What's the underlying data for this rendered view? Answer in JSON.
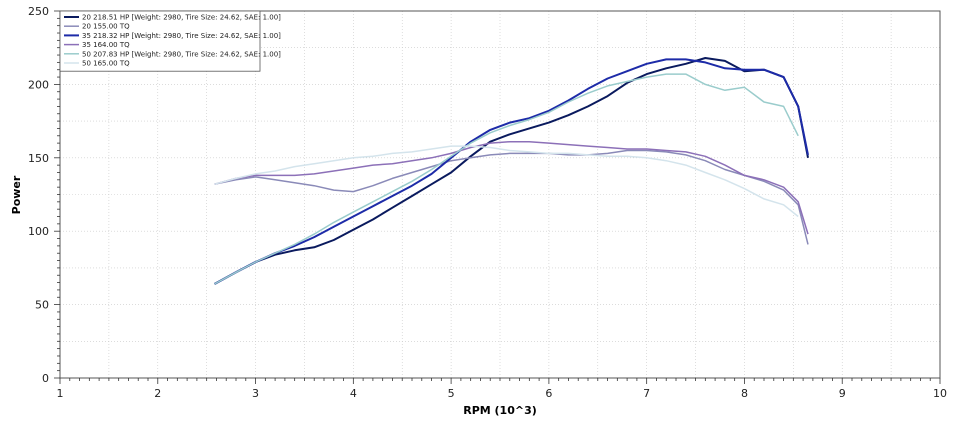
{
  "chart_data": {
    "type": "line",
    "xlabel": "RPM (10^3)",
    "ylabel": "Power",
    "xlim": [
      1,
      10
    ],
    "ylim": [
      0,
      250
    ],
    "x_ticks": [
      1,
      2,
      3,
      4,
      5,
      6,
      7,
      8,
      9,
      10
    ],
    "y_ticks": [
      0,
      50,
      100,
      150,
      200,
      250
    ],
    "grid": true,
    "legend_position": "top-left",
    "series": [
      {
        "name": "20 218.51 HP [Weight: 2980, Tire Size: 24.62, SAE: 1.00]",
        "color": "#0a1a5e",
        "width": 2,
        "x": [
          2.58,
          2.8,
          3.0,
          3.2,
          3.4,
          3.6,
          3.8,
          4.0,
          4.2,
          4.4,
          4.6,
          4.8,
          5.0,
          5.2,
          5.4,
          5.6,
          5.8,
          6.0,
          6.2,
          6.4,
          6.6,
          6.8,
          7.0,
          7.2,
          7.4,
          7.6,
          7.8,
          8.0,
          8.2,
          8.4,
          8.55,
          8.65
        ],
        "y": [
          64,
          72,
          79,
          84,
          87,
          89,
          94,
          101,
          108,
          116,
          124,
          132,
          140,
          151,
          161,
          166,
          170,
          174,
          179,
          185,
          192,
          201,
          207,
          211,
          214,
          218,
          216,
          209,
          210,
          205,
          185,
          150
        ]
      },
      {
        "name": "20 155.00 TQ",
        "color": "#8a8ab8",
        "width": 1.5,
        "x": [
          2.58,
          2.8,
          3.0,
          3.2,
          3.4,
          3.6,
          3.8,
          4.0,
          4.2,
          4.4,
          4.6,
          4.8,
          5.0,
          5.2,
          5.4,
          5.6,
          5.8,
          6.0,
          6.2,
          6.4,
          6.6,
          6.8,
          7.0,
          7.2,
          7.4,
          7.6,
          7.8,
          8.0,
          8.2,
          8.4,
          8.55,
          8.65
        ],
        "y": [
          132,
          135,
          137,
          135,
          133,
          131,
          128,
          127,
          131,
          136,
          140,
          144,
          148,
          150,
          152,
          153,
          153,
          153,
          152,
          152,
          153,
          155,
          155,
          154,
          152,
          148,
          142,
          138,
          134,
          128,
          118,
          91
        ]
      },
      {
        "name": "35 218.32 HP [Weight: 2980, Tire Size: 24.62, SAE: 1.00]",
        "color": "#1d2ba8",
        "width": 2,
        "x": [
          2.58,
          2.8,
          3.0,
          3.2,
          3.4,
          3.6,
          3.8,
          4.0,
          4.2,
          4.4,
          4.6,
          4.8,
          5.0,
          5.2,
          5.4,
          5.6,
          5.8,
          6.0,
          6.2,
          6.4,
          6.6,
          6.8,
          7.0,
          7.2,
          7.4,
          7.6,
          7.8,
          8.0,
          8.2,
          8.4,
          8.55,
          8.65
        ],
        "y": [
          64,
          72,
          79,
          85,
          90,
          96,
          103,
          110,
          117,
          124,
          131,
          139,
          150,
          161,
          169,
          174,
          177,
          182,
          189,
          197,
          204,
          209,
          214,
          217,
          217,
          215,
          211,
          210,
          210,
          205,
          185,
          152
        ]
      },
      {
        "name": "35 164.00 TQ",
        "color": "#8c70b8",
        "width": 1.5,
        "x": [
          2.58,
          2.8,
          3.0,
          3.2,
          3.4,
          3.6,
          3.8,
          4.0,
          4.2,
          4.4,
          4.6,
          4.8,
          5.0,
          5.2,
          5.4,
          5.6,
          5.8,
          6.0,
          6.2,
          6.4,
          6.6,
          6.8,
          7.0,
          7.2,
          7.4,
          7.6,
          7.8,
          8.0,
          8.2,
          8.4,
          8.55,
          8.65
        ],
        "y": [
          132,
          136,
          138,
          138,
          138,
          139,
          141,
          143,
          145,
          146,
          148,
          150,
          153,
          157,
          160,
          161,
          161,
          160,
          159,
          158,
          157,
          156,
          156,
          155,
          154,
          151,
          145,
          138,
          135,
          130,
          120,
          98
        ]
      },
      {
        "name": "50 207.83 HP [Weight: 2980, Tire Size: 24.62, SAE: 1.00]",
        "color": "#9acccc",
        "width": 1.5,
        "x": [
          2.58,
          2.8,
          3.0,
          3.2,
          3.4,
          3.6,
          3.8,
          4.0,
          4.2,
          4.4,
          4.6,
          4.8,
          5.0,
          5.2,
          5.4,
          5.6,
          5.8,
          6.0,
          6.2,
          6.4,
          6.6,
          6.8,
          7.0,
          7.2,
          7.4,
          7.6,
          7.8,
          8.0,
          8.2,
          8.4,
          8.55
        ],
        "y": [
          64,
          72,
          79,
          85,
          91,
          98,
          106,
          113,
          120,
          127,
          134,
          142,
          151,
          160,
          167,
          172,
          176,
          181,
          188,
          194,
          199,
          202,
          205,
          207,
          207,
          200,
          196,
          198,
          188,
          185,
          165
        ]
      },
      {
        "name": "50 165.00 TQ",
        "color": "#d4e4ec",
        "width": 1.5,
        "x": [
          2.58,
          2.8,
          3.0,
          3.2,
          3.4,
          3.6,
          3.8,
          4.0,
          4.2,
          4.4,
          4.6,
          4.8,
          5.0,
          5.2,
          5.4,
          5.6,
          5.8,
          6.0,
          6.2,
          6.4,
          6.6,
          6.8,
          7.0,
          7.2,
          7.4,
          7.6,
          7.8,
          8.0,
          8.2,
          8.4,
          8.55
        ],
        "y": [
          132,
          136,
          139,
          141,
          144,
          146,
          148,
          150,
          151,
          153,
          154,
          156,
          158,
          158,
          157,
          155,
          154,
          153,
          153,
          152,
          151,
          151,
          150,
          148,
          145,
          140,
          135,
          129,
          122,
          118,
          110
        ]
      }
    ]
  }
}
